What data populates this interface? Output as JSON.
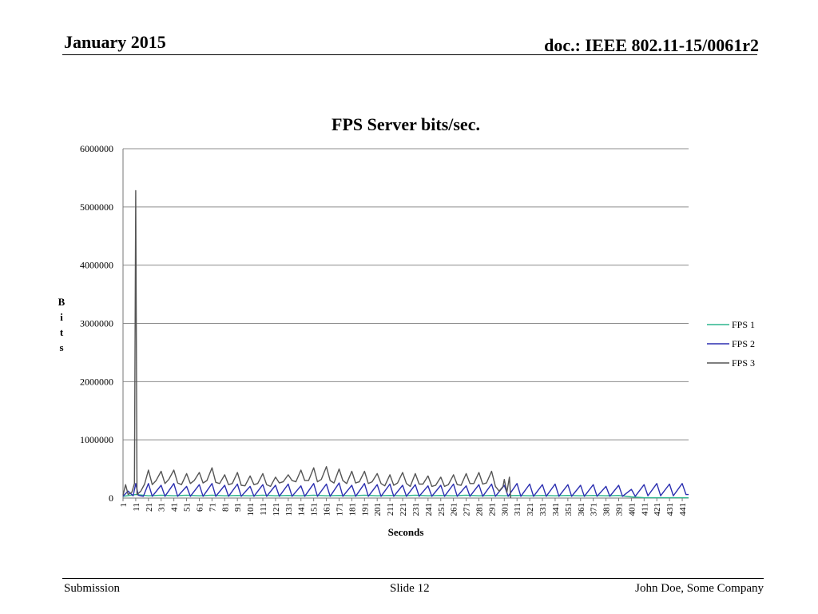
{
  "header": {
    "date": "January 2015",
    "doc": "doc.: IEEE 802.11-15/0061r2"
  },
  "footer": {
    "left": "Submission",
    "center": "Slide 12",
    "right": "John Doe, Some Company"
  },
  "chart_data": {
    "type": "line",
    "title": "FPS Server bits/sec.",
    "xlabel": "Seconds",
    "ylabel": "Bits",
    "ylim": [
      0,
      6000000
    ],
    "yticks": [
      0,
      1000000,
      2000000,
      3000000,
      4000000,
      5000000,
      6000000
    ],
    "xlim": [
      1,
      446
    ],
    "xticks": [
      1,
      11,
      21,
      31,
      41,
      51,
      61,
      71,
      81,
      91,
      101,
      111,
      121,
      131,
      141,
      151,
      161,
      171,
      181,
      191,
      201,
      211,
      221,
      231,
      241,
      251,
      261,
      271,
      281,
      291,
      301,
      311,
      321,
      331,
      341,
      351,
      361,
      371,
      381,
      391,
      401,
      411,
      421,
      431,
      441
    ],
    "grid": true,
    "legend": "right",
    "series": [
      {
        "name": "FPS 1",
        "color": "#2db58d",
        "points": [
          [
            1,
            30000
          ],
          [
            11,
            60000
          ],
          [
            21,
            40000
          ],
          [
            31,
            50000
          ],
          [
            41,
            40000
          ],
          [
            51,
            50000
          ],
          [
            61,
            40000
          ],
          [
            71,
            50000
          ],
          [
            81,
            40000
          ],
          [
            91,
            45000
          ],
          [
            101,
            40000
          ],
          [
            111,
            50000
          ],
          [
            121,
            40000
          ],
          [
            131,
            45000
          ],
          [
            141,
            40000
          ],
          [
            151,
            50000
          ],
          [
            161,
            40000
          ],
          [
            171,
            45000
          ],
          [
            181,
            40000
          ],
          [
            191,
            50000
          ],
          [
            201,
            40000
          ],
          [
            211,
            45000
          ],
          [
            221,
            40000
          ],
          [
            231,
            50000
          ],
          [
            241,
            40000
          ],
          [
            251,
            45000
          ],
          [
            261,
            40000
          ],
          [
            271,
            50000
          ],
          [
            281,
            40000
          ],
          [
            291,
            45000
          ],
          [
            301,
            40000
          ],
          [
            311,
            45000
          ],
          [
            321,
            40000
          ],
          [
            331,
            45000
          ],
          [
            341,
            40000
          ],
          [
            351,
            45000
          ],
          [
            361,
            40000
          ],
          [
            371,
            45000
          ],
          [
            381,
            40000
          ],
          [
            391,
            45000
          ],
          [
            401,
            20000
          ],
          [
            411,
            5000
          ],
          [
            421,
            5000
          ],
          [
            431,
            5000
          ],
          [
            441,
            5000
          ],
          [
            446,
            5000
          ]
        ]
      },
      {
        "name": "FPS 2",
        "color": "#2b2fb0",
        "points": [
          [
            1,
            30000
          ],
          [
            5,
            120000
          ],
          [
            9,
            40000
          ],
          [
            11,
            250000
          ],
          [
            13,
            50000
          ],
          [
            17,
            30000
          ],
          [
            21,
            250000
          ],
          [
            24,
            30000
          ],
          [
            31,
            220000
          ],
          [
            34,
            30000
          ],
          [
            41,
            250000
          ],
          [
            44,
            30000
          ],
          [
            51,
            200000
          ],
          [
            54,
            30000
          ],
          [
            61,
            230000
          ],
          [
            64,
            30000
          ],
          [
            71,
            250000
          ],
          [
            74,
            30000
          ],
          [
            81,
            220000
          ],
          [
            84,
            30000
          ],
          [
            91,
            240000
          ],
          [
            94,
            30000
          ],
          [
            101,
            200000
          ],
          [
            104,
            30000
          ],
          [
            111,
            230000
          ],
          [
            114,
            30000
          ],
          [
            121,
            220000
          ],
          [
            124,
            30000
          ],
          [
            131,
            240000
          ],
          [
            134,
            30000
          ],
          [
            141,
            210000
          ],
          [
            144,
            30000
          ],
          [
            151,
            250000
          ],
          [
            154,
            30000
          ],
          [
            161,
            240000
          ],
          [
            164,
            30000
          ],
          [
            171,
            260000
          ],
          [
            174,
            30000
          ],
          [
            181,
            220000
          ],
          [
            184,
            30000
          ],
          [
            191,
            250000
          ],
          [
            194,
            30000
          ],
          [
            201,
            230000
          ],
          [
            204,
            30000
          ],
          [
            211,
            240000
          ],
          [
            214,
            30000
          ],
          [
            221,
            220000
          ],
          [
            224,
            30000
          ],
          [
            231,
            230000
          ],
          [
            234,
            30000
          ],
          [
            241,
            210000
          ],
          [
            244,
            30000
          ],
          [
            251,
            220000
          ],
          [
            254,
            30000
          ],
          [
            261,
            240000
          ],
          [
            264,
            30000
          ],
          [
            271,
            210000
          ],
          [
            274,
            30000
          ],
          [
            281,
            230000
          ],
          [
            284,
            30000
          ],
          [
            291,
            240000
          ],
          [
            294,
            30000
          ],
          [
            301,
            220000
          ],
          [
            304,
            30000
          ],
          [
            311,
            250000
          ],
          [
            314,
            30000
          ],
          [
            321,
            240000
          ],
          [
            324,
            30000
          ],
          [
            331,
            230000
          ],
          [
            334,
            30000
          ],
          [
            341,
            240000
          ],
          [
            344,
            30000
          ],
          [
            351,
            230000
          ],
          [
            354,
            30000
          ],
          [
            361,
            220000
          ],
          [
            364,
            30000
          ],
          [
            371,
            230000
          ],
          [
            374,
            30000
          ],
          [
            381,
            200000
          ],
          [
            384,
            30000
          ],
          [
            391,
            220000
          ],
          [
            394,
            30000
          ],
          [
            401,
            150000
          ],
          [
            404,
            30000
          ],
          [
            411,
            230000
          ],
          [
            414,
            40000
          ],
          [
            421,
            250000
          ],
          [
            424,
            40000
          ],
          [
            431,
            240000
          ],
          [
            434,
            40000
          ],
          [
            441,
            250000
          ],
          [
            444,
            60000
          ],
          [
            446,
            60000
          ]
        ]
      },
      {
        "name": "FPS 3",
        "color": "#555555",
        "points": [
          [
            1,
            50000
          ],
          [
            3,
            230000
          ],
          [
            5,
            60000
          ],
          [
            8,
            100000
          ],
          [
            10,
            250000
          ],
          [
            11,
            5280000
          ],
          [
            12,
            60000
          ],
          [
            15,
            120000
          ],
          [
            18,
            240000
          ],
          [
            21,
            480000
          ],
          [
            24,
            230000
          ],
          [
            27,
            300000
          ],
          [
            31,
            460000
          ],
          [
            34,
            250000
          ],
          [
            37,
            320000
          ],
          [
            41,
            480000
          ],
          [
            44,
            260000
          ],
          [
            47,
            230000
          ],
          [
            51,
            420000
          ],
          [
            54,
            250000
          ],
          [
            57,
            300000
          ],
          [
            61,
            440000
          ],
          [
            64,
            260000
          ],
          [
            67,
            300000
          ],
          [
            71,
            520000
          ],
          [
            74,
            270000
          ],
          [
            77,
            250000
          ],
          [
            81,
            400000
          ],
          [
            84,
            230000
          ],
          [
            87,
            250000
          ],
          [
            91,
            440000
          ],
          [
            94,
            220000
          ],
          [
            97,
            210000
          ],
          [
            101,
            380000
          ],
          [
            104,
            230000
          ],
          [
            107,
            250000
          ],
          [
            111,
            420000
          ],
          [
            114,
            230000
          ],
          [
            117,
            200000
          ],
          [
            121,
            360000
          ],
          [
            124,
            260000
          ],
          [
            127,
            280000
          ],
          [
            131,
            400000
          ],
          [
            134,
            300000
          ],
          [
            137,
            280000
          ],
          [
            141,
            480000
          ],
          [
            144,
            300000
          ],
          [
            147,
            300000
          ],
          [
            151,
            520000
          ],
          [
            154,
            280000
          ],
          [
            157,
            320000
          ],
          [
            161,
            540000
          ],
          [
            164,
            300000
          ],
          [
            167,
            260000
          ],
          [
            171,
            500000
          ],
          [
            174,
            300000
          ],
          [
            177,
            250000
          ],
          [
            181,
            460000
          ],
          [
            184,
            260000
          ],
          [
            187,
            280000
          ],
          [
            191,
            460000
          ],
          [
            194,
            250000
          ],
          [
            197,
            280000
          ],
          [
            201,
            420000
          ],
          [
            204,
            250000
          ],
          [
            207,
            210000
          ],
          [
            211,
            400000
          ],
          [
            214,
            220000
          ],
          [
            217,
            260000
          ],
          [
            221,
            440000
          ],
          [
            224,
            250000
          ],
          [
            227,
            200000
          ],
          [
            231,
            420000
          ],
          [
            234,
            240000
          ],
          [
            237,
            240000
          ],
          [
            241,
            380000
          ],
          [
            244,
            200000
          ],
          [
            247,
            220000
          ],
          [
            251,
            360000
          ],
          [
            254,
            200000
          ],
          [
            257,
            230000
          ],
          [
            261,
            400000
          ],
          [
            264,
            230000
          ],
          [
            267,
            220000
          ],
          [
            271,
            420000
          ],
          [
            274,
            250000
          ],
          [
            277,
            250000
          ],
          [
            281,
            440000
          ],
          [
            284,
            240000
          ],
          [
            287,
            260000
          ],
          [
            291,
            460000
          ],
          [
            294,
            200000
          ],
          [
            297,
            120000
          ],
          [
            300,
            200000
          ],
          [
            301,
            320000
          ],
          [
            303,
            100000
          ],
          [
            305,
            360000
          ],
          [
            306,
            0
          ]
        ]
      }
    ]
  }
}
